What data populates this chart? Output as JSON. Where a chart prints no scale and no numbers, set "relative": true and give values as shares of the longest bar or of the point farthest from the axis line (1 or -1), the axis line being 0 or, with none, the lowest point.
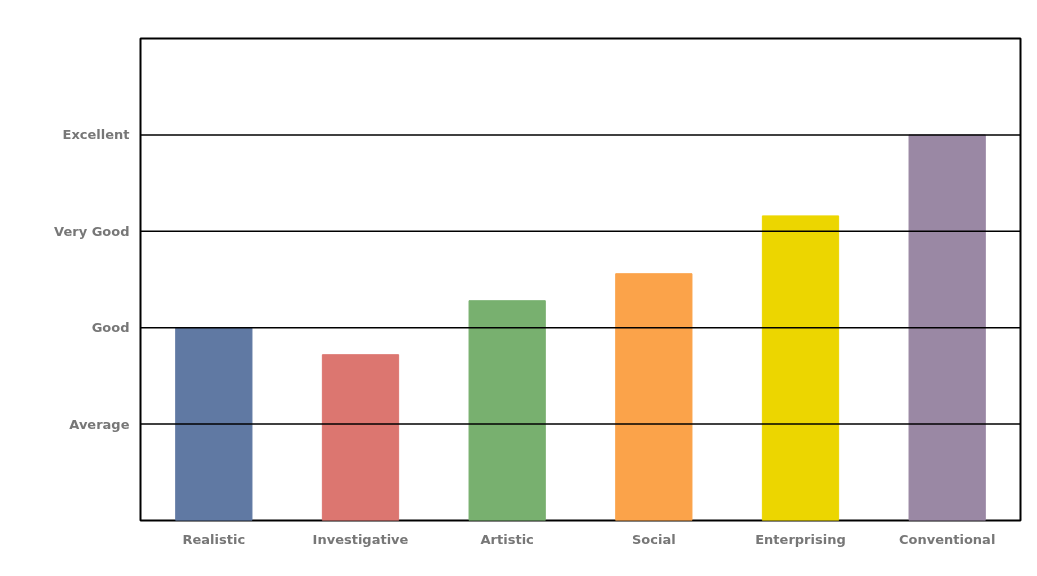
{
  "chart_data": {
    "type": "bar",
    "categories": [
      "Realistic",
      "Investigative",
      "Artistic",
      "Social",
      "Enterprising",
      "Conventional"
    ],
    "values": [
      0.5,
      0.43,
      0.57,
      0.64,
      0.79,
      1.0
    ],
    "colors": [
      "#6079a3",
      "#dc7670",
      "#78b06f",
      "#fba34a",
      "#ecd600",
      "#9a88a4"
    ],
    "relative": true,
    "ref_lines": [
      {
        "axis": "y",
        "value": 0.25,
        "label": "Average",
        "color": "#000000"
      },
      {
        "axis": "y",
        "value": 0.5,
        "label": "Good",
        "color": "#000000"
      },
      {
        "axis": "y",
        "value": 0.75,
        "label": "Very Good",
        "color": "#000000"
      },
      {
        "axis": "y",
        "value": 1.0,
        "label": "Excellent",
        "color": "#000000"
      }
    ]
  }
}
